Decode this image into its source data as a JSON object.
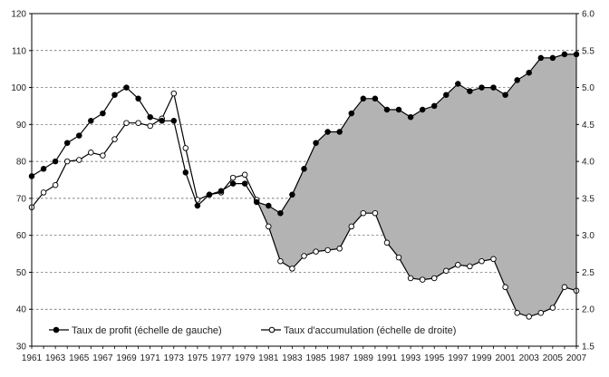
{
  "chart_data": {
    "type": "line",
    "title": "",
    "xlabel": "",
    "ylabel_left": "",
    "ylabel_right": "",
    "x_tick_labels": [
      "1961",
      "1963",
      "1965",
      "1967",
      "1969",
      "1971",
      "1973",
      "1975",
      "1977",
      "1979",
      "1981",
      "1983",
      "1985",
      "1987",
      "1989",
      "1991",
      "1993",
      "1995",
      "1997",
      "1999",
      "2001",
      "2003",
      "2005",
      "2007"
    ],
    "y_left_ticks": [
      "30",
      "40",
      "50",
      "60",
      "70",
      "80",
      "90",
      "100",
      "110",
      "120"
    ],
    "y_right_ticks": [
      "1.5",
      "2.0",
      "2.5",
      "3.0",
      "3.5",
      "4.0",
      "4.5",
      "5.0",
      "5.5",
      "6.0"
    ],
    "xlim": [
      1961,
      2007
    ],
    "ylim_left": [
      30,
      120
    ],
    "ylim_right": [
      1.5,
      6.0
    ],
    "grid": "horizontal dashed",
    "legend_placement": "bottom-left",
    "shaded_area": "between the two series from 1980 to 2007",
    "series": [
      {
        "name": "Taux de profit (échelle de gauche)",
        "axis": "left",
        "marker": "filled-circle",
        "color": "#000000",
        "x": [
          1961,
          1962,
          1963,
          1964,
          1965,
          1966,
          1967,
          1968,
          1969,
          1970,
          1971,
          1972,
          1973,
          1974,
          1975,
          1976,
          1977,
          1978,
          1979,
          1980,
          1981,
          1982,
          1983,
          1984,
          1985,
          1986,
          1987,
          1988,
          1989,
          1990,
          1991,
          1992,
          1993,
          1994,
          1995,
          1996,
          1997,
          1998,
          1999,
          2000,
          2001,
          2002,
          2003,
          2004,
          2005,
          2006,
          2007
        ],
        "values": [
          76,
          78,
          80,
          85,
          87,
          91,
          93,
          98,
          100,
          97,
          92,
          91,
          91,
          77,
          68,
          71,
          72,
          74,
          74,
          69,
          68,
          66,
          71,
          78,
          85,
          88,
          88,
          93,
          97,
          97,
          94,
          94,
          92,
          94,
          95,
          98,
          101,
          99,
          100,
          100,
          98,
          102,
          104,
          108,
          108,
          109,
          109
        ]
      },
      {
        "name": "Taux d'accumulation (échelle de droite)",
        "axis": "right",
        "marker": "open-circle",
        "color": "#000000",
        "x": [
          1961,
          1962,
          1963,
          1964,
          1965,
          1966,
          1967,
          1968,
          1969,
          1970,
          1971,
          1972,
          1973,
          1974,
          1975,
          1976,
          1977,
          1978,
          1979,
          1980,
          1981,
          1982,
          1983,
          1984,
          1985,
          1986,
          1987,
          1988,
          1989,
          1990,
          1991,
          1992,
          1993,
          1994,
          1995,
          1996,
          1997,
          1998,
          1999,
          2000,
          2001,
          2002,
          2003,
          2004,
          2005,
          2006,
          2007
        ],
        "values": [
          3.38,
          3.58,
          3.68,
          4.0,
          4.02,
          4.12,
          4.08,
          4.3,
          4.52,
          4.52,
          4.48,
          4.58,
          4.92,
          4.18,
          3.48,
          3.55,
          3.58,
          3.78,
          3.82,
          3.48,
          3.12,
          2.65,
          2.55,
          2.72,
          2.78,
          2.8,
          2.82,
          3.12,
          3.3,
          3.3,
          2.9,
          2.7,
          2.42,
          2.4,
          2.42,
          2.52,
          2.6,
          2.58,
          2.65,
          2.68,
          2.3,
          1.95,
          1.9,
          1.95,
          2.02,
          2.3,
          2.25
        ]
      }
    ]
  }
}
